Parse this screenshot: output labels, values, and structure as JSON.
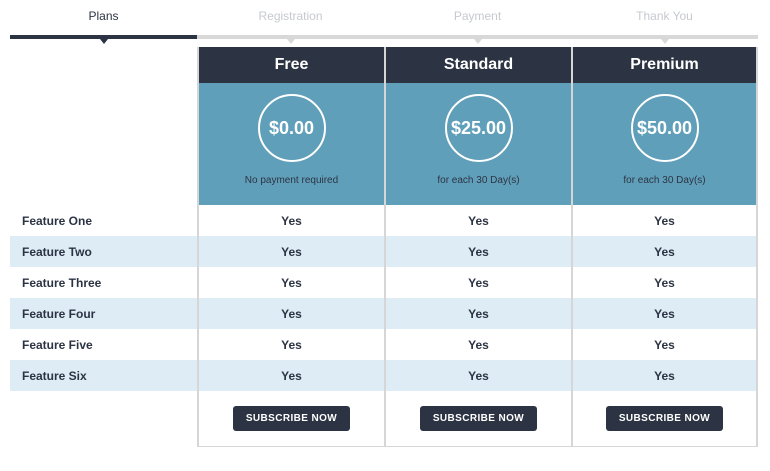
{
  "colors": {
    "accent_dark": "#2c3444",
    "accent_teal": "#609fba",
    "row_stripe": "#ddecf5",
    "inactive_gray": "#d8d8d8",
    "border_gray": "#d6d6d6"
  },
  "stepper": {
    "active_step": "Plans",
    "steps": [
      {
        "label": "Plans"
      },
      {
        "label": "Registration"
      },
      {
        "label": "Payment"
      },
      {
        "label": "Thank You"
      }
    ]
  },
  "plans": [
    {
      "name": "Free",
      "price": "$0.00",
      "billing_note": "No payment required",
      "subscribe_label": "SUBSCRIBE NOW"
    },
    {
      "name": "Standard",
      "price": "$25.00",
      "billing_note": "for each 30 Day(s)",
      "subscribe_label": "SUBSCRIBE NOW"
    },
    {
      "name": "Premium",
      "price": "$50.00",
      "billing_note": "for each 30 Day(s)",
      "subscribe_label": "SUBSCRIBE NOW"
    }
  ],
  "features": [
    {
      "label": "Feature One",
      "values": [
        "Yes",
        "Yes",
        "Yes"
      ]
    },
    {
      "label": "Feature Two",
      "values": [
        "Yes",
        "Yes",
        "Yes"
      ]
    },
    {
      "label": "Feature Three",
      "values": [
        "Yes",
        "Yes",
        "Yes"
      ]
    },
    {
      "label": "Feature Four",
      "values": [
        "Yes",
        "Yes",
        "Yes"
      ]
    },
    {
      "label": "Feature Five",
      "values": [
        "Yes",
        "Yes",
        "Yes"
      ]
    },
    {
      "label": "Feature Six",
      "values": [
        "Yes",
        "Yes",
        "Yes"
      ]
    }
  ]
}
